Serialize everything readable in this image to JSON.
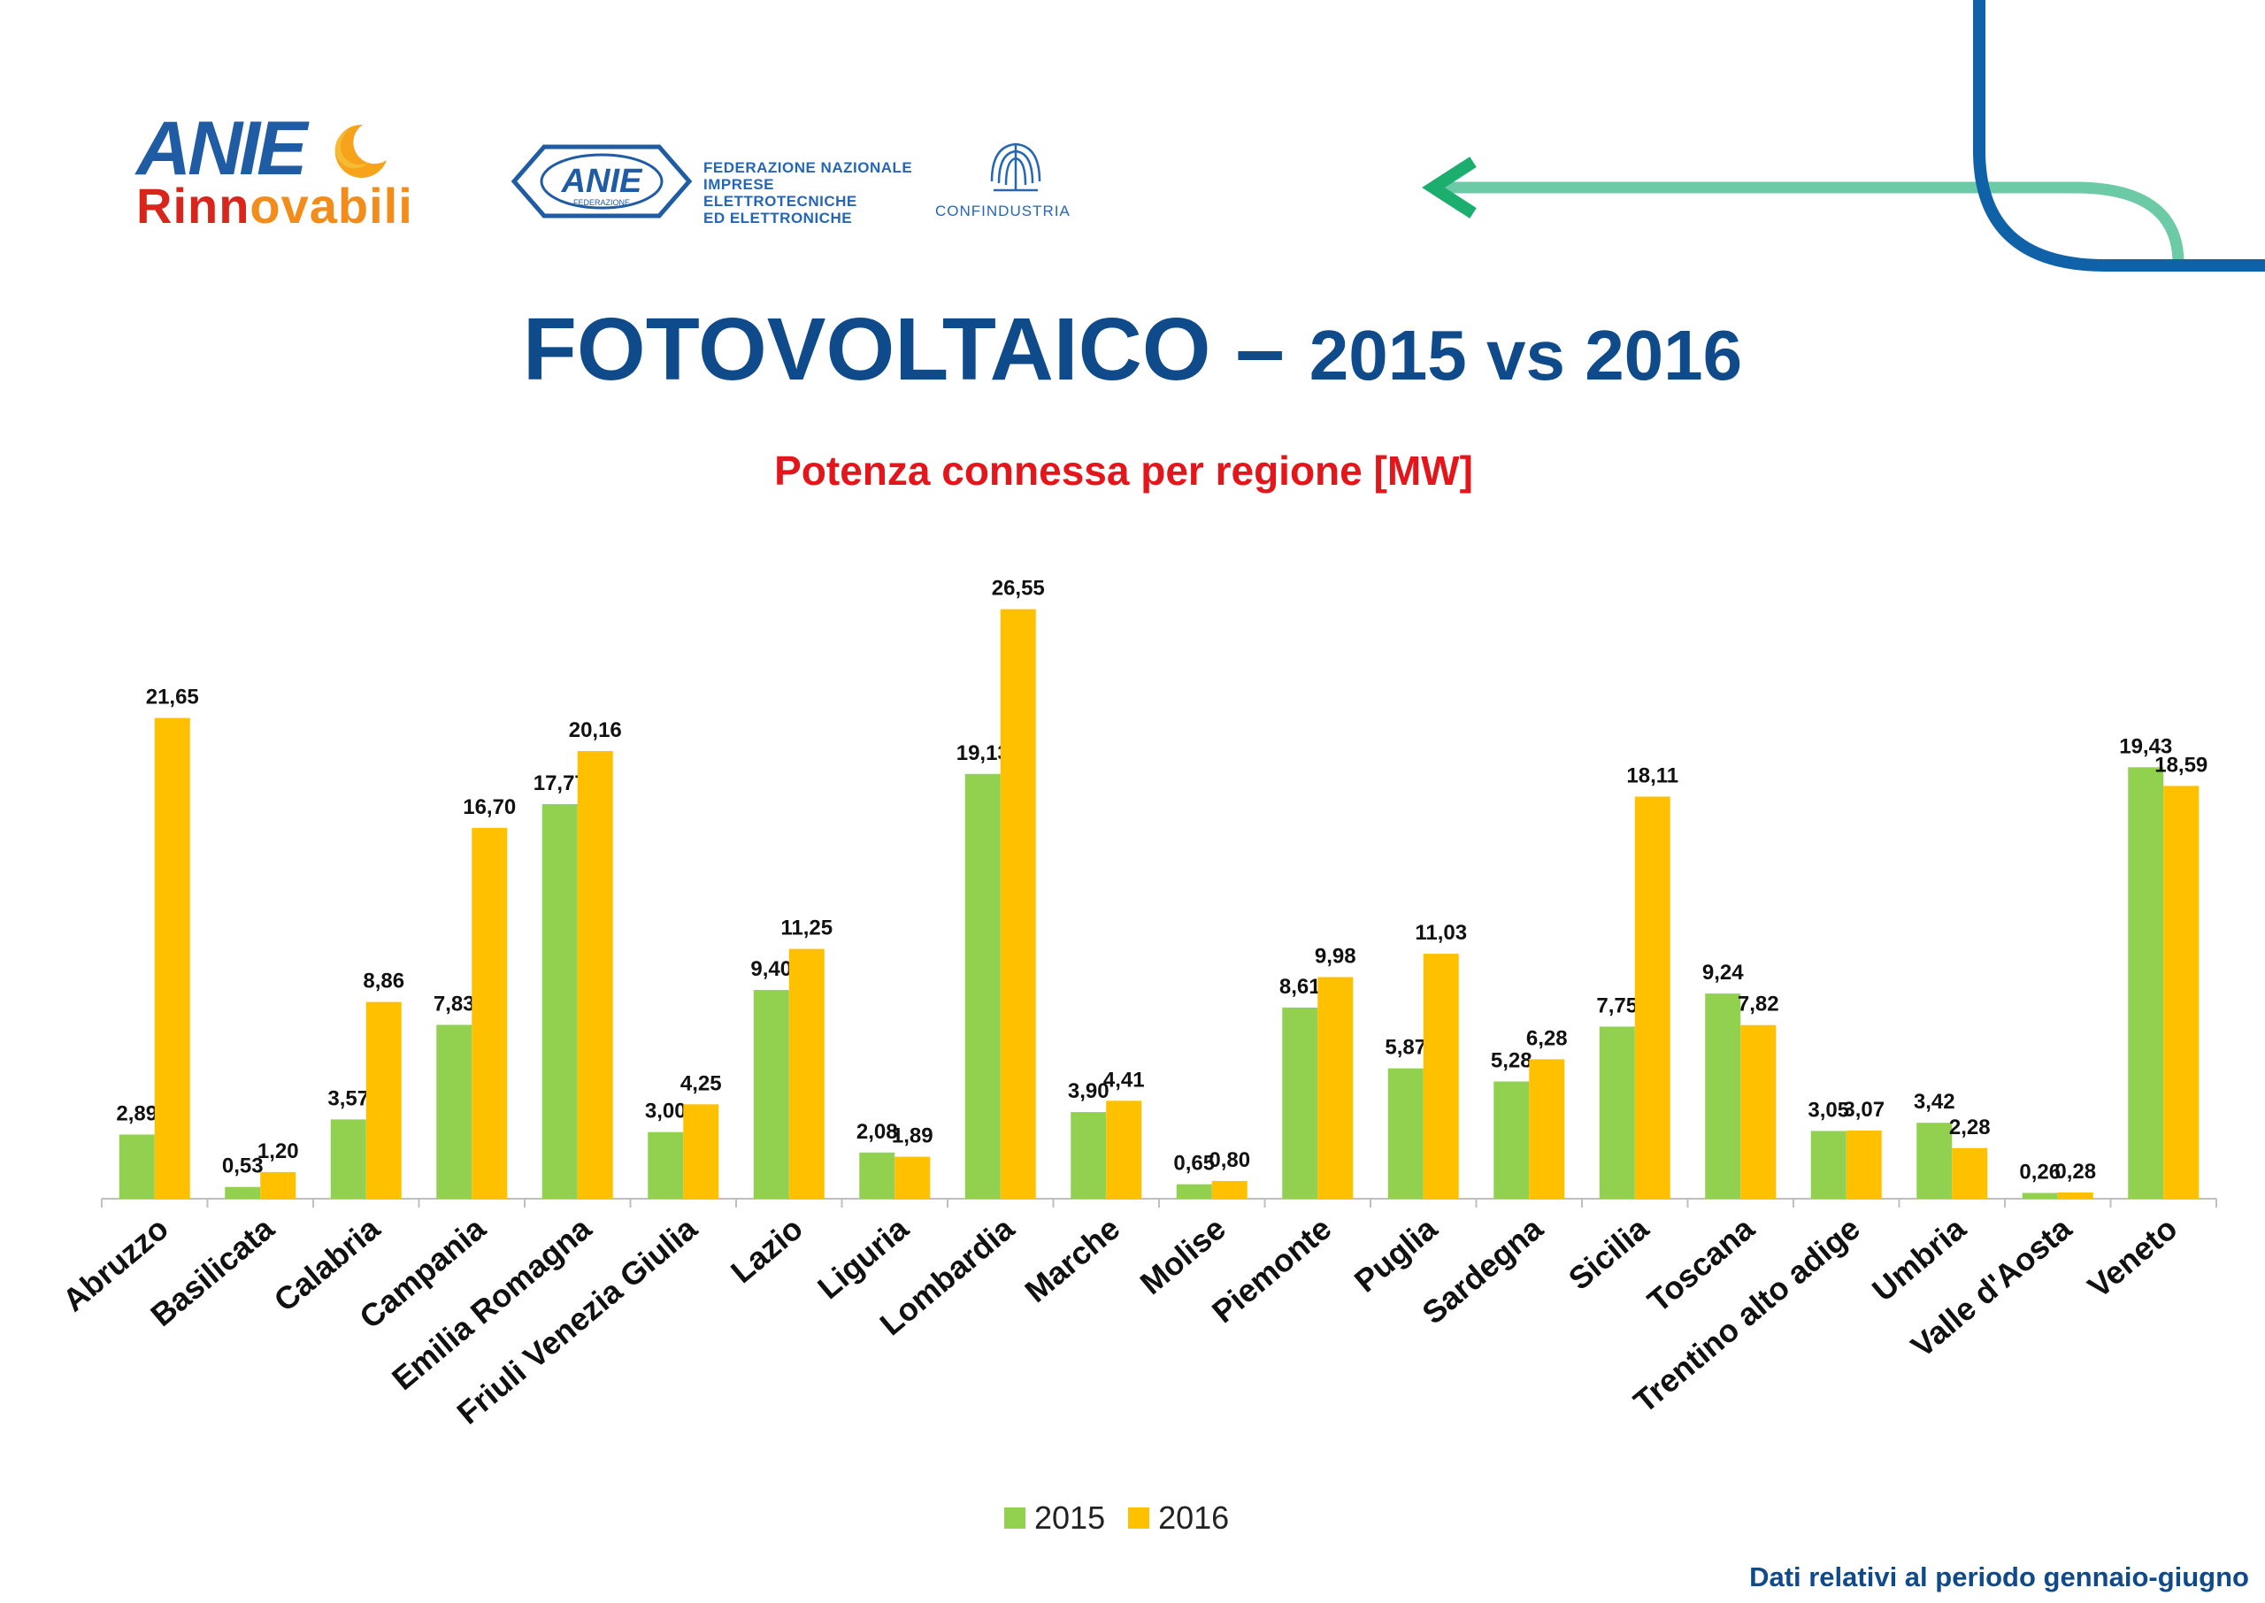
{
  "header": {
    "logo_anie_line1": "ANIE",
    "logo_anie_line2_a": "Rinn",
    "logo_anie_line2_b": "ovabili",
    "logo_federazione": "ANIE",
    "logo_federazione_sub": "FEDERAZIONE",
    "federazione_line1": "FEDERAZIONE NAZIONALE",
    "federazione_line2": "IMPRESE ELETTROTECNICHE",
    "federazione_line3": "ED ELETTRONICHE",
    "confindustria": "CONFINDUSTRIA"
  },
  "colors": {
    "title": "#0f4a8a",
    "subtitle": "#e3161b",
    "series_2015": "#92d050",
    "series_2016": "#ffc000",
    "arrow": "#6ccba6",
    "arc": "#0f62a8"
  },
  "chart_data": {
    "type": "bar",
    "title_main": "FOTOVOLTAICO –",
    "title_years": "2015 vs 2016",
    "subtitle": "Potenza connessa per regione [MW]",
    "categories": [
      "Abruzzo",
      "Basilicata",
      "Calabria",
      "Campania",
      "Emilia Romagna",
      "Friuli Venezia Giulia",
      "Lazio",
      "Liguria",
      "Lombardia",
      "Marche",
      "Molise",
      "Piemonte",
      "Puglia",
      "Sardegna",
      "Sicilia",
      "Toscana",
      "Trentino alto adige",
      "Umbria",
      "Valle d'Aosta",
      "Veneto"
    ],
    "series": [
      {
        "name": "2015",
        "values": [
          2.89,
          0.53,
          3.57,
          7.83,
          17.77,
          3.0,
          9.4,
          2.08,
          19.13,
          3.9,
          0.65,
          8.61,
          5.87,
          5.28,
          7.75,
          9.24,
          3.05,
          3.42,
          0.26,
          19.43
        ],
        "labels": [
          "2,89",
          "0,53",
          "3,57",
          "7,83",
          "17,77",
          "3,00",
          "9,40",
          "2,08",
          "19,13",
          "3,90",
          "0,65",
          "8,61",
          "5,87",
          "5,28",
          "7,75",
          "9,24",
          "3,05",
          "3,42",
          "0,26",
          "19,43"
        ]
      },
      {
        "name": "2016",
        "values": [
          21.65,
          1.2,
          8.86,
          16.7,
          20.16,
          4.25,
          11.25,
          1.89,
          26.55,
          4.41,
          0.8,
          9.98,
          11.03,
          6.28,
          18.11,
          7.82,
          3.07,
          2.28,
          0.28,
          18.59
        ],
        "labels": [
          "21,65",
          "1,20",
          "8,86",
          "16,70",
          "20,16",
          "4,25",
          "11,25",
          "1,89",
          "26,55",
          "4,41",
          "0,80",
          "9,98",
          "11,03",
          "6,28",
          "18,11",
          "7,82",
          "3,07",
          "2,28",
          "0,28",
          "18,59"
        ]
      }
    ],
    "ylim": [
      0,
      28
    ],
    "grid": false,
    "legend": "bottom-center"
  },
  "footer": {
    "note": "Dati relativi al periodo gennaio-giugno"
  }
}
